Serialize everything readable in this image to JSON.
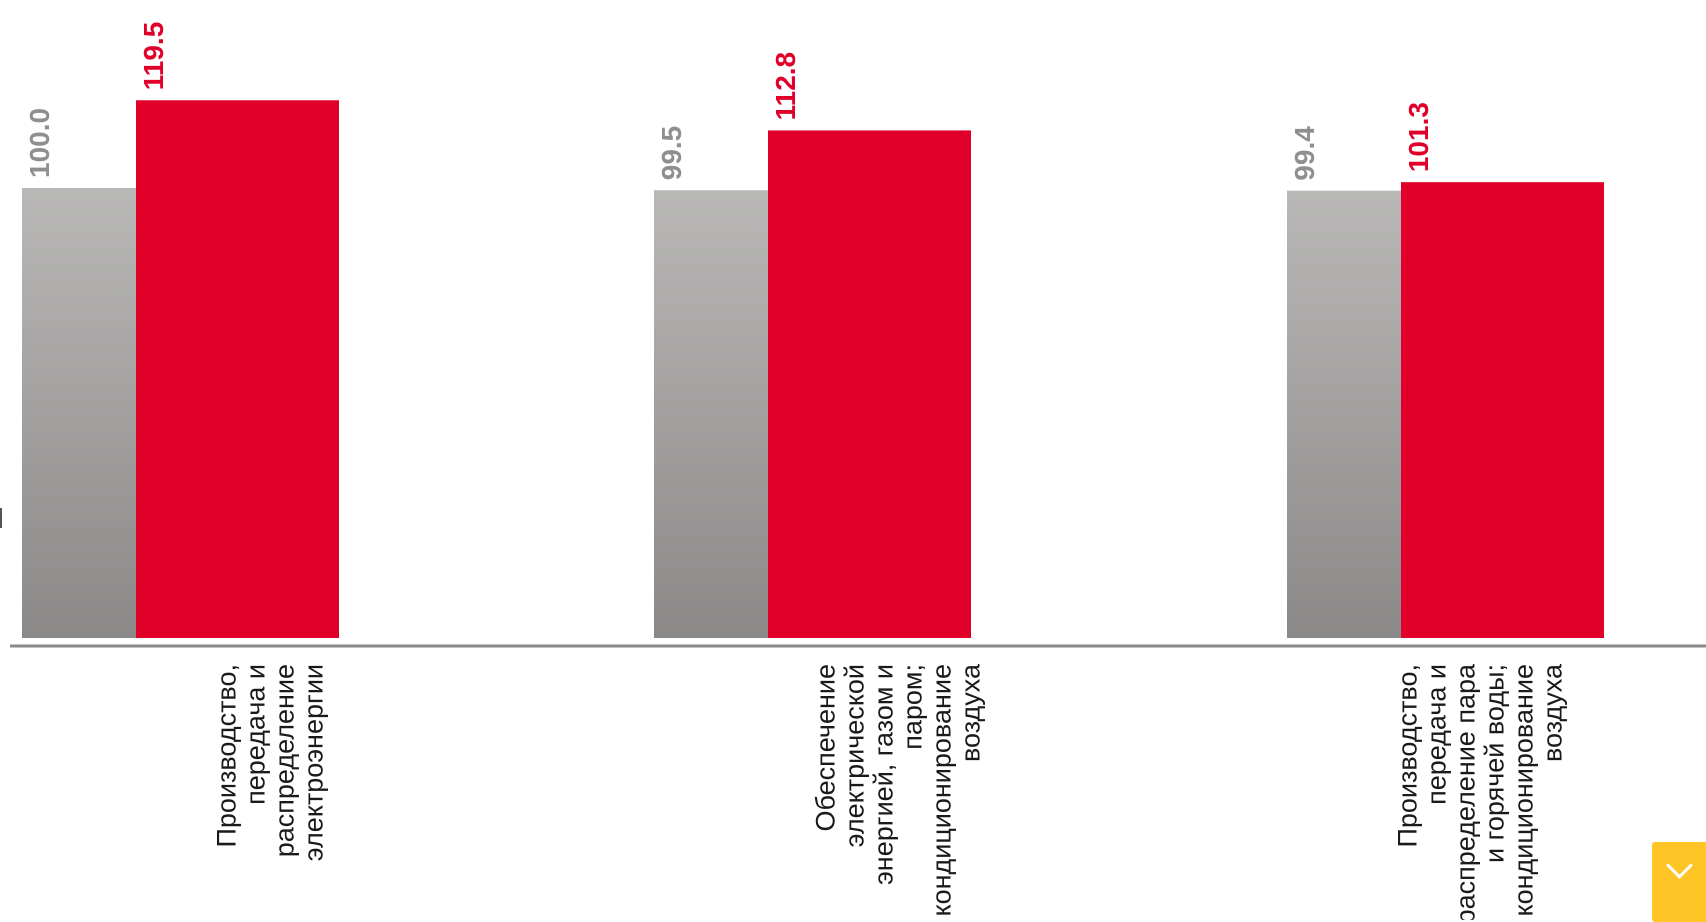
{
  "chart_data": {
    "type": "bar",
    "categories": [
      [
        "Производство,",
        "передача и",
        "распределение",
        "электроэнергии"
      ],
      [
        "Обеспечение",
        "электрической",
        "энергией, газом и",
        "паром;",
        "кондиционирование",
        "воздуха"
      ],
      [
        "Производство,",
        "передача и",
        "распределение пара",
        "и горячей воды;",
        "кондиционирование",
        "воздуха"
      ]
    ],
    "series": [
      {
        "values": [
          100.0,
          99.5,
          99.4
        ],
        "value_labels": [
          "100.0",
          "99.5",
          "99.4"
        ]
      },
      {
        "values": [
          119.5,
          112.8,
          101.3
        ],
        "value_labels": [
          "119.5",
          "112.8",
          "101.3"
        ]
      }
    ],
    "ylim": [
      0,
      140
    ],
    "grid": false,
    "legend": "none",
    "colors": {
      "series1_top": "#b9b8b7",
      "series1_bottom": "#8b8988",
      "series2": "#e0002a",
      "series1_label": "#8f8f8f",
      "series2_label": "#e0002a",
      "axis": "#8a8a8a",
      "badge": "#ffc425"
    }
  },
  "badge": {
    "icon": "chevron-down-icon"
  }
}
